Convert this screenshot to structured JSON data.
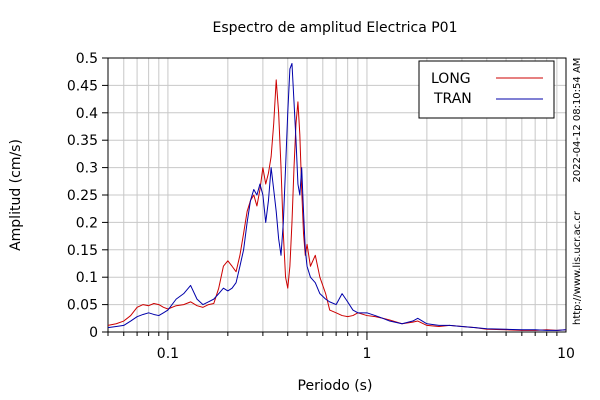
{
  "chart_data": {
    "type": "line",
    "title": "Espectro de amplitud Electrica P01",
    "xlabel": "Periodo (s)",
    "ylabel": "Amplitud (cm/s)",
    "xscale": "log",
    "xlim": [
      0.05,
      10
    ],
    "ylim": [
      0,
      0.5
    ],
    "grid": true,
    "legend_position": "top-right",
    "x_tick_labels": [
      {
        "value": 0.1,
        "label": "0.1"
      },
      {
        "value": 1,
        "label": "1"
      },
      {
        "value": 10,
        "label": "10"
      }
    ],
    "y_ticks": [
      0,
      0.05,
      0.1,
      0.15,
      0.2,
      0.25,
      0.3,
      0.35,
      0.4,
      0.45,
      0.5
    ],
    "y_tick_labels": [
      "0",
      "0.05",
      "0.1",
      "0.15",
      "0.2",
      "0.25",
      "0.3",
      "0.35",
      "0.4",
      "0.45",
      "0.5"
    ],
    "series": [
      {
        "name": "LONG",
        "color": "#cc0000",
        "x": [
          0.05,
          0.055,
          0.06,
          0.065,
          0.07,
          0.075,
          0.08,
          0.085,
          0.09,
          0.095,
          0.1,
          0.11,
          0.12,
          0.13,
          0.14,
          0.15,
          0.16,
          0.17,
          0.18,
          0.19,
          0.2,
          0.21,
          0.22,
          0.23,
          0.24,
          0.25,
          0.26,
          0.27,
          0.28,
          0.29,
          0.3,
          0.31,
          0.32,
          0.33,
          0.34,
          0.35,
          0.36,
          0.37,
          0.38,
          0.39,
          0.4,
          0.41,
          0.42,
          0.43,
          0.44,
          0.45,
          0.46,
          0.47,
          0.48,
          0.49,
          0.5,
          0.52,
          0.55,
          0.58,
          0.62,
          0.65,
          0.7,
          0.75,
          0.8,
          0.85,
          0.9,
          1.0,
          1.1,
          1.2,
          1.3,
          1.5,
          1.7,
          1.8,
          2.0,
          2.3,
          2.6,
          3.0,
          3.5,
          4.0,
          5.0,
          6.0,
          7.0,
          8.0,
          9.0,
          10.0
        ],
        "y": [
          0.012,
          0.015,
          0.02,
          0.03,
          0.045,
          0.05,
          0.048,
          0.052,
          0.05,
          0.045,
          0.042,
          0.048,
          0.05,
          0.055,
          0.048,
          0.045,
          0.05,
          0.052,
          0.08,
          0.12,
          0.13,
          0.12,
          0.11,
          0.14,
          0.18,
          0.22,
          0.24,
          0.25,
          0.23,
          0.26,
          0.3,
          0.27,
          0.29,
          0.32,
          0.38,
          0.46,
          0.4,
          0.3,
          0.18,
          0.1,
          0.08,
          0.12,
          0.2,
          0.3,
          0.38,
          0.42,
          0.36,
          0.26,
          0.18,
          0.14,
          0.16,
          0.12,
          0.14,
          0.1,
          0.07,
          0.04,
          0.035,
          0.03,
          0.028,
          0.03,
          0.035,
          0.03,
          0.028,
          0.025,
          0.022,
          0.015,
          0.018,
          0.02,
          0.012,
          0.01,
          0.012,
          0.01,
          0.008,
          0.005,
          0.004,
          0.003,
          0.003,
          0.004,
          0.003,
          0.004
        ]
      },
      {
        "name": "TRAN",
        "color": "#0000aa",
        "x": [
          0.05,
          0.055,
          0.06,
          0.065,
          0.07,
          0.075,
          0.08,
          0.085,
          0.09,
          0.095,
          0.1,
          0.11,
          0.12,
          0.13,
          0.14,
          0.15,
          0.16,
          0.17,
          0.18,
          0.19,
          0.2,
          0.21,
          0.22,
          0.23,
          0.24,
          0.25,
          0.26,
          0.27,
          0.28,
          0.29,
          0.3,
          0.31,
          0.32,
          0.33,
          0.34,
          0.35,
          0.36,
          0.37,
          0.38,
          0.39,
          0.4,
          0.41,
          0.42,
          0.43,
          0.44,
          0.45,
          0.46,
          0.47,
          0.48,
          0.49,
          0.5,
          0.52,
          0.55,
          0.58,
          0.62,
          0.65,
          0.7,
          0.75,
          0.8,
          0.85,
          0.9,
          1.0,
          1.1,
          1.2,
          1.3,
          1.5,
          1.7,
          1.8,
          2.0,
          2.3,
          2.6,
          3.0,
          3.5,
          4.0,
          5.0,
          6.0,
          7.0,
          8.0,
          9.0,
          10.0
        ],
        "y": [
          0.008,
          0.01,
          0.012,
          0.02,
          0.028,
          0.032,
          0.035,
          0.032,
          0.03,
          0.035,
          0.04,
          0.06,
          0.07,
          0.085,
          0.06,
          0.05,
          0.055,
          0.06,
          0.07,
          0.08,
          0.075,
          0.08,
          0.09,
          0.12,
          0.15,
          0.2,
          0.24,
          0.26,
          0.25,
          0.27,
          0.25,
          0.2,
          0.24,
          0.3,
          0.26,
          0.22,
          0.17,
          0.14,
          0.2,
          0.3,
          0.4,
          0.48,
          0.49,
          0.42,
          0.35,
          0.27,
          0.25,
          0.3,
          0.22,
          0.15,
          0.12,
          0.1,
          0.09,
          0.07,
          0.06,
          0.055,
          0.05,
          0.07,
          0.055,
          0.04,
          0.035,
          0.035,
          0.03,
          0.025,
          0.02,
          0.015,
          0.02,
          0.025,
          0.015,
          0.012,
          0.012,
          0.01,
          0.008,
          0.006,
          0.005,
          0.004,
          0.004,
          0.003,
          0.003,
          0.004
        ]
      }
    ]
  },
  "side_text": {
    "timestamp": "2022-04-12 08:10:54 AM",
    "url": "http://www.lis.ucr.ac.cr"
  }
}
